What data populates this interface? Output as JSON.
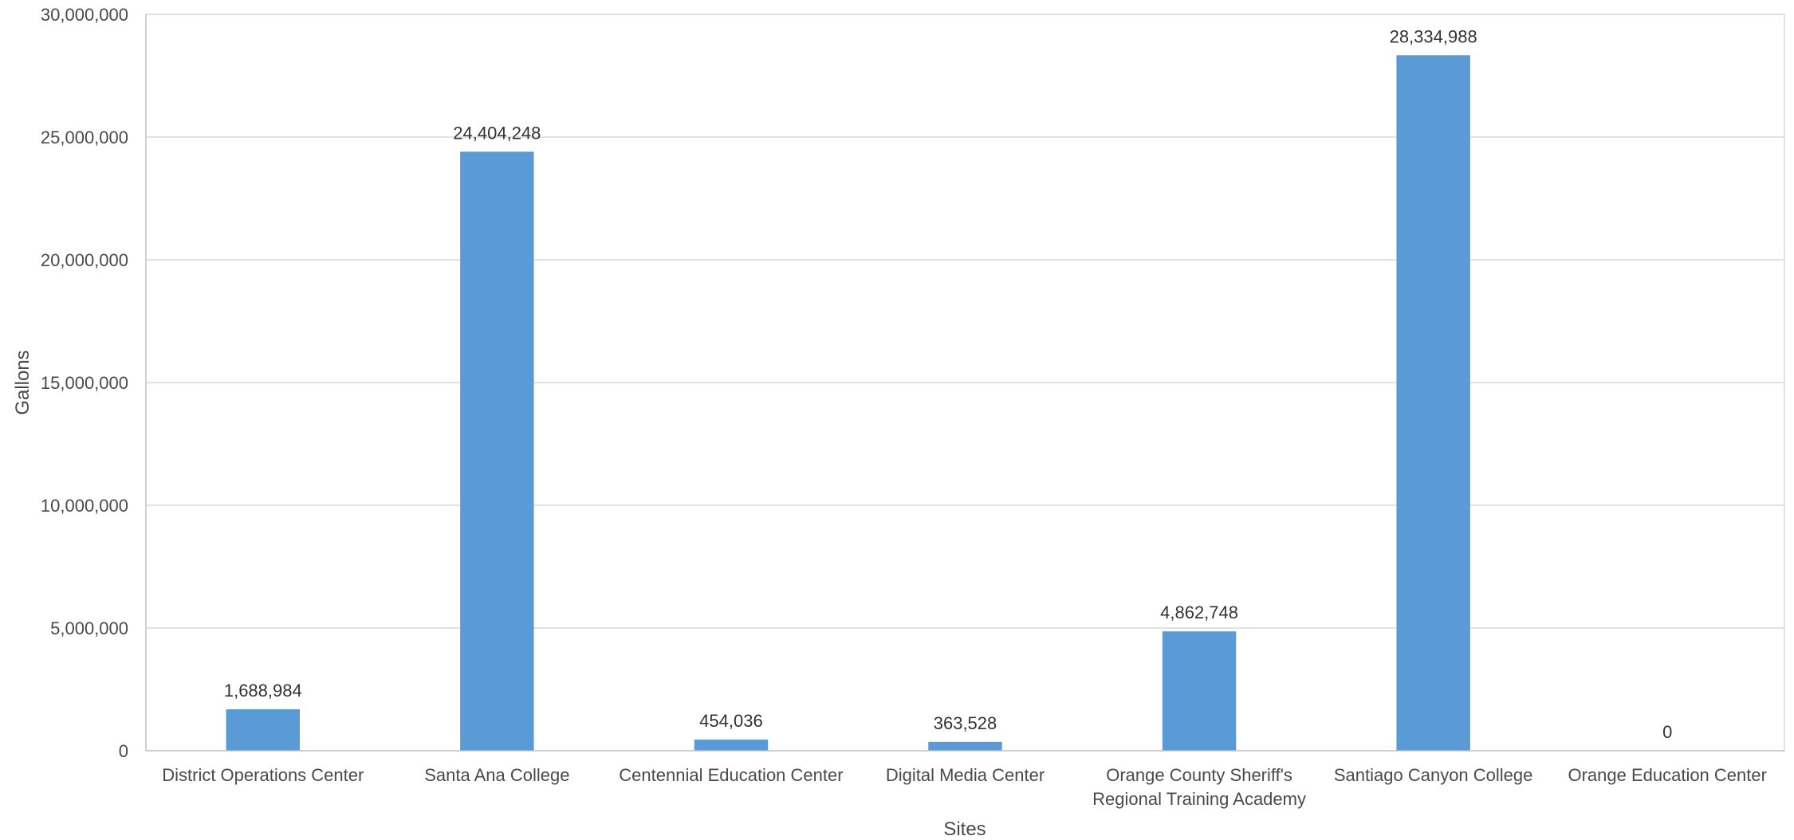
{
  "chart_data": {
    "type": "bar",
    "categories": [
      [
        "District Operations Center"
      ],
      [
        "Santa Ana College"
      ],
      [
        "Centennial Education Center"
      ],
      [
        "Digital Media Center"
      ],
      [
        "Orange County Sheriff's",
        "Regional Training Academy"
      ],
      [
        "Santiago Canyon College"
      ],
      [
        "Orange Education Center"
      ]
    ],
    "values": [
      1688984,
      24404248,
      454036,
      363528,
      4862748,
      28334988,
      0
    ],
    "data_labels": [
      "1,688,984",
      "24,404,248",
      "454,036",
      "363,528",
      "4,862,748",
      "28,334,988",
      "0"
    ],
    "xlabel": "Sites",
    "ylabel": "Gallons",
    "ylim": [
      0,
      30000000
    ],
    "y_ticks": [
      0,
      5000000,
      10000000,
      15000000,
      20000000,
      25000000,
      30000000
    ],
    "y_tick_labels": [
      "0",
      "5,000,000",
      "10,000,000",
      "15,000,000",
      "20,000,000",
      "25,000,000",
      "30,000,000"
    ],
    "grid": true,
    "legend": "none",
    "colors": {
      "bar": "#5b9bd5",
      "grid": "#d9d9d9",
      "axis": "#bfbfbf",
      "text": "#4a4a4a"
    }
  }
}
